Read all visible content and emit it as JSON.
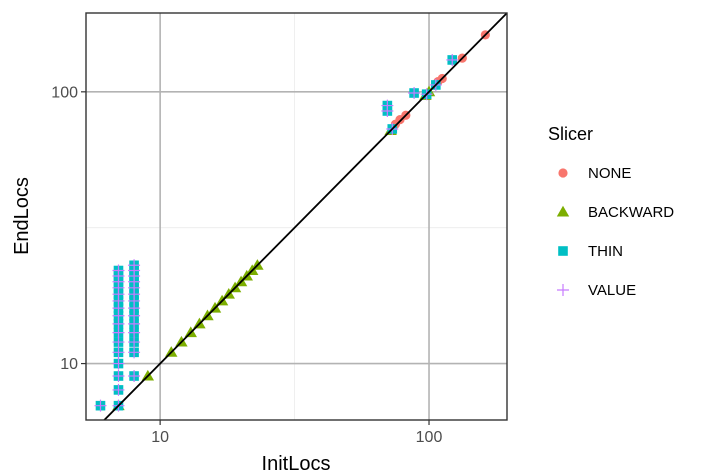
{
  "chart_data": {
    "type": "scatter",
    "xlabel": "InitLocs",
    "ylabel": "EndLocs",
    "x_scale": "log10",
    "y_scale": "log10",
    "xlim": [
      5.3,
      195
    ],
    "ylim": [
      6.2,
      195
    ],
    "x_ticks": [
      {
        "value": 10,
        "label": "10"
      },
      {
        "value": 100,
        "label": "100"
      }
    ],
    "y_ticks": [
      {
        "value": 10,
        "label": "10"
      },
      {
        "value": 100,
        "label": "100"
      }
    ],
    "grid": true,
    "reference_line": "y = x",
    "legend": {
      "title": "Slicer",
      "position": "right"
    },
    "series": [
      {
        "name": "NONE",
        "marker": "circle",
        "color": "#F8766D",
        "points": [
          [
            75,
            76
          ],
          [
            78,
            79
          ],
          [
            82,
            82
          ],
          [
            108,
            109
          ],
          [
            112,
            112
          ],
          [
            133,
            133
          ],
          [
            162,
            162
          ]
        ]
      },
      {
        "name": "BACKWARD",
        "marker": "triangle",
        "color": "#7CAE00",
        "points": [
          [
            7,
            7
          ],
          [
            9,
            9
          ],
          [
            11,
            11
          ],
          [
            12,
            12
          ],
          [
            13,
            13
          ],
          [
            14,
            14
          ],
          [
            15,
            15
          ],
          [
            16,
            16
          ],
          [
            17,
            17
          ],
          [
            18,
            18
          ],
          [
            19,
            19
          ],
          [
            20,
            20
          ],
          [
            21,
            21
          ],
          [
            22,
            22
          ],
          [
            23,
            23
          ],
          [
            72,
            72
          ],
          [
            97,
            97
          ],
          [
            100,
            100
          ]
        ]
      },
      {
        "name": "THIN",
        "marker": "square",
        "color": "#00BFC4",
        "points": [
          [
            6,
            7
          ],
          [
            7,
            7
          ],
          [
            7,
            8
          ],
          [
            7,
            9
          ],
          [
            7,
            10
          ],
          [
            7,
            11
          ],
          [
            7,
            12
          ],
          [
            7,
            13
          ],
          [
            7,
            14
          ],
          [
            7,
            15
          ],
          [
            7,
            16
          ],
          [
            7,
            17
          ],
          [
            7,
            18
          ],
          [
            7,
            19
          ],
          [
            7,
            20
          ],
          [
            7,
            21
          ],
          [
            7,
            22
          ],
          [
            8,
            9
          ],
          [
            8,
            11
          ],
          [
            8,
            12
          ],
          [
            8,
            13
          ],
          [
            8,
            14
          ],
          [
            8,
            15
          ],
          [
            8,
            16
          ],
          [
            8,
            17
          ],
          [
            8,
            18
          ],
          [
            8,
            19
          ],
          [
            8,
            20
          ],
          [
            8,
            21
          ],
          [
            8,
            22
          ],
          [
            8,
            23
          ],
          [
            70,
            85
          ],
          [
            70,
            89
          ],
          [
            73,
            73
          ],
          [
            88,
            99
          ],
          [
            98,
            98
          ],
          [
            106,
            106
          ],
          [
            122,
            131
          ]
        ]
      },
      {
        "name": "VALUE",
        "marker": "plus",
        "color": "#C77CFF",
        "points": [
          [
            6,
            7
          ],
          [
            7,
            7
          ],
          [
            7,
            8
          ],
          [
            7,
            9
          ],
          [
            7,
            10
          ],
          [
            7,
            11
          ],
          [
            7,
            12
          ],
          [
            7,
            13
          ],
          [
            7,
            14
          ],
          [
            7,
            15
          ],
          [
            7,
            16
          ],
          [
            7,
            17
          ],
          [
            7,
            18
          ],
          [
            7,
            19
          ],
          [
            7,
            20
          ],
          [
            7,
            21
          ],
          [
            7,
            22
          ],
          [
            8,
            9
          ],
          [
            8,
            11
          ],
          [
            8,
            12
          ],
          [
            8,
            13
          ],
          [
            8,
            14
          ],
          [
            8,
            15
          ],
          [
            8,
            16
          ],
          [
            8,
            17
          ],
          [
            8,
            18
          ],
          [
            8,
            19
          ],
          [
            8,
            20
          ],
          [
            8,
            21
          ],
          [
            8,
            22
          ],
          [
            8,
            23
          ],
          [
            70,
            85
          ],
          [
            70,
            89
          ],
          [
            73,
            73
          ],
          [
            88,
            99
          ],
          [
            98,
            98
          ],
          [
            106,
            106
          ],
          [
            122,
            131
          ]
        ]
      }
    ]
  }
}
